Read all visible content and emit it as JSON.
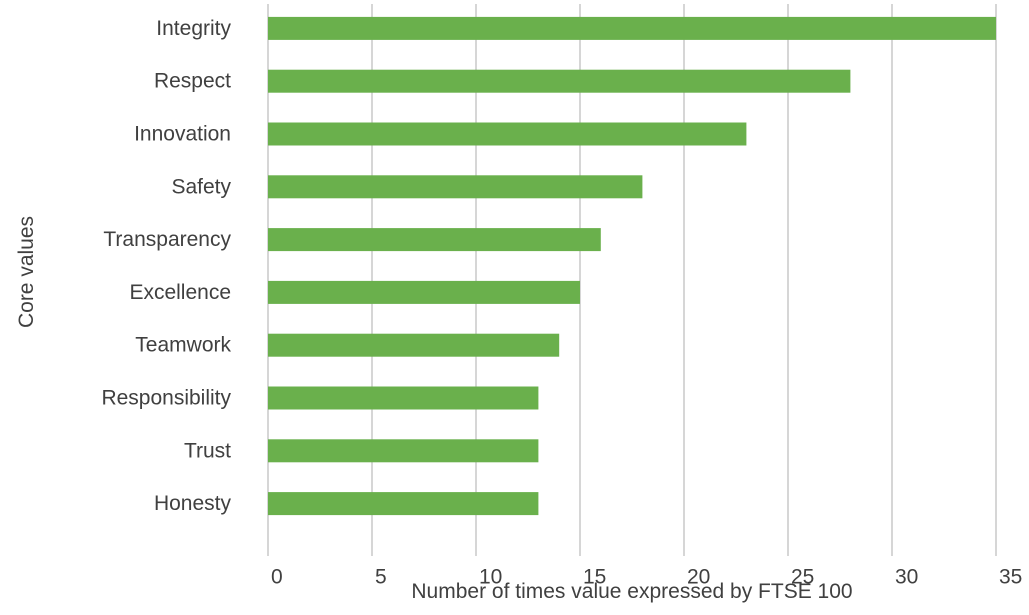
{
  "chart_data": {
    "type": "bar",
    "orientation": "horizontal",
    "categories": [
      "Integrity",
      "Respect",
      "Innovation",
      "Safety",
      "Transparency",
      "Excellence",
      "Teamwork",
      "Responsibility",
      "Trust",
      "Honesty"
    ],
    "values": [
      35,
      28,
      23,
      18,
      16,
      15,
      14,
      13,
      13,
      13
    ],
    "xlabel": "Number of times value expressed by FTSE 100",
    "ylabel": "Core values",
    "xlim": [
      0,
      35
    ],
    "xticks": [
      "0",
      "5",
      "10",
      "15",
      "20",
      "25",
      "30",
      "35"
    ],
    "grid": "vertical",
    "bar_color": "#6ab04c"
  }
}
